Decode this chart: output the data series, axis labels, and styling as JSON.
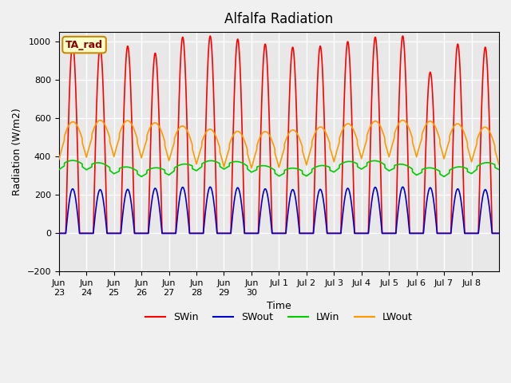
{
  "title": "Alfalfa Radiation",
  "xlabel": "Time",
  "ylabel": "Radiation (W/m2)",
  "ylim": [
    -200,
    1050
  ],
  "background_color": "#e8e8e8",
  "grid_color": "#ffffff",
  "tick_labels": [
    "Jun\n23",
    "Jun\n24",
    "Jun\n25",
    "Jun\n26",
    "Jun\n27",
    "Jun\n28",
    "Jun\n29",
    "Jun\n30",
    "Jul 1",
    "Jul 2",
    "Jul 3",
    "Jul 4",
    "Jul 5",
    "Jul 6",
    "Jul 7",
    "Jul 8"
  ],
  "legend_label": "TA_rad",
  "series": {
    "SWin": {
      "color": "#ff0000",
      "lw": 1.2
    },
    "SWout": {
      "color": "#0000cc",
      "lw": 1.2
    },
    "LWin": {
      "color": "#00cc00",
      "lw": 1.2
    },
    "LWout": {
      "color": "#ff9900",
      "lw": 1.2
    }
  },
  "num_days": 16,
  "pts_per_day": 144,
  "SWin_peak": 1000,
  "SWout_peak": 235,
  "LWin_base": 330,
  "LWin_amp": 30,
  "LWout_base": 390,
  "LWout_amp": 170
}
